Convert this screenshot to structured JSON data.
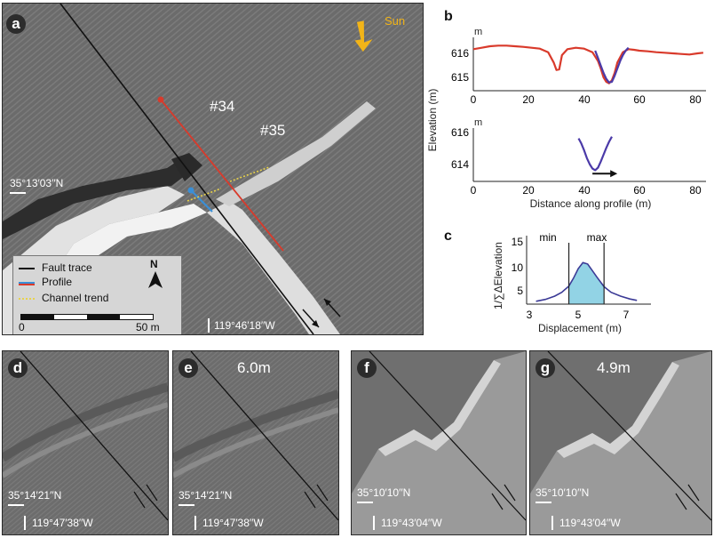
{
  "panel_a": {
    "label": "a",
    "sun_label": "Sun",
    "site_34": "#34",
    "site_35": "#35",
    "lat": "35°13′03′′N",
    "lon": "119°46′18′′W",
    "legend": {
      "fault_trace": "Fault trace",
      "profile": "Profile",
      "channel_trend": "Channel trend",
      "north": "N",
      "scale_zero": "0",
      "scale_end": "50 m"
    },
    "colors": {
      "fault": "#111111",
      "profile": "#3a8fd6",
      "red_profile": "#d93a2b",
      "channel": "#e8d24a",
      "sun": "#f2b418"
    }
  },
  "panel_b": {
    "label": "b",
    "unit_top": "m",
    "unit_bottom": "m",
    "ylabel": "Elevation (m)",
    "xlabel": "Distance along profile (m)",
    "top_yticks": [
      "616",
      "615"
    ],
    "bottom_yticks": [
      "616",
      "614"
    ],
    "xticks": [
      "0",
      "20",
      "40",
      "60",
      "80"
    ]
  },
  "panel_c": {
    "label": "c",
    "min_label": "min",
    "max_label": "max",
    "ylabel": "1/∑ΔElevation",
    "xlabel": "Displacement (m)",
    "yticks": [
      "15",
      "10",
      "5"
    ],
    "xticks": [
      "3",
      "5",
      "7"
    ]
  },
  "panel_d": {
    "label": "d",
    "lat": "35°14′21′′N",
    "lon": "119°47′38′′W"
  },
  "panel_e": {
    "label": "e",
    "offset": "6.0m",
    "lat": "35°14′21′′N",
    "lon": "119°47′38′′W"
  },
  "panel_f": {
    "label": "f",
    "lat": "35°10′10′′N",
    "lon": "119°43′04′′W"
  },
  "panel_g": {
    "label": "g",
    "offset": "4.9m",
    "lat": "35°10′10′′N",
    "lon": "119°43′04′′W"
  },
  "chart_data": [
    {
      "type": "line",
      "id": "b-top",
      "xlabel": "Distance along profile (m)",
      "ylabel": "Elevation (m)",
      "xlim": [
        0,
        84
      ],
      "ylim": [
        614.6,
        616.4
      ],
      "series": [
        {
          "color": "#d93a2b",
          "x": [
            0,
            3,
            6,
            9,
            12,
            15,
            18,
            21,
            24,
            27,
            29,
            30,
            31,
            32,
            34,
            37,
            40,
            43,
            45,
            46,
            47,
            48,
            49,
            50,
            51,
            52,
            54,
            56,
            58,
            60,
            63,
            66,
            69,
            72,
            75,
            78,
            81,
            83
          ],
          "y": [
            616.0,
            616.05,
            616.1,
            616.12,
            616.12,
            616.1,
            616.08,
            616.05,
            616.02,
            615.9,
            615.55,
            615.3,
            615.32,
            615.8,
            616.0,
            616.05,
            616.02,
            615.9,
            615.6,
            615.35,
            615.05,
            614.9,
            614.85,
            614.95,
            615.2,
            615.55,
            615.9,
            616.0,
            615.98,
            615.95,
            615.93,
            615.9,
            615.88,
            615.86,
            615.84,
            615.82,
            615.86,
            615.88
          ]
        },
        {
          "color": "#4b3aa8",
          "x": [
            44,
            45,
            46,
            47,
            48,
            49,
            50,
            51,
            52,
            53,
            54,
            55,
            56
          ],
          "y": [
            615.95,
            615.7,
            615.45,
            615.2,
            615.0,
            614.88,
            614.9,
            615.1,
            615.35,
            615.6,
            615.8,
            615.95,
            616.05
          ]
        }
      ]
    },
    {
      "type": "line",
      "id": "b-bottom",
      "xlabel": "Distance along profile (m)",
      "ylabel": "Elevation (m)",
      "xlim": [
        0,
        84
      ],
      "ylim": [
        613.4,
        616.5
      ],
      "series": [
        {
          "color": "#4b3aa8",
          "x": [
            38,
            39,
            40,
            41,
            42,
            43,
            44,
            45,
            46,
            47,
            48,
            49,
            50
          ],
          "y": [
            615.9,
            615.6,
            615.2,
            614.75,
            614.4,
            614.15,
            614.05,
            614.2,
            614.55,
            614.95,
            615.35,
            615.7,
            616.0
          ]
        }
      ],
      "arrow": {
        "x_from": 43,
        "x_to": 52,
        "y": 613.85
      }
    },
    {
      "type": "area",
      "id": "c",
      "xlabel": "Displacement (m)",
      "ylabel": "1/∑ΔElevation",
      "xlim": [
        2.5,
        7.8
      ],
      "ylim": [
        2.5,
        17
      ],
      "curve": {
        "x": [
          2.9,
          3.3,
          3.7,
          4.0,
          4.3,
          4.5,
          4.7,
          4.9,
          5.1,
          5.3,
          5.5,
          5.8,
          6.1,
          6.5,
          6.9,
          7.2
        ],
        "y": [
          3.1,
          3.5,
          4.2,
          5.0,
          6.3,
          8.0,
          10.0,
          11.3,
          11.0,
          9.6,
          8.2,
          6.2,
          5.0,
          4.2,
          3.6,
          3.3
        ]
      },
      "min": 4.3,
      "max": 5.8,
      "fill": "#7fcbe0",
      "line": "#3b3a96"
    }
  ]
}
